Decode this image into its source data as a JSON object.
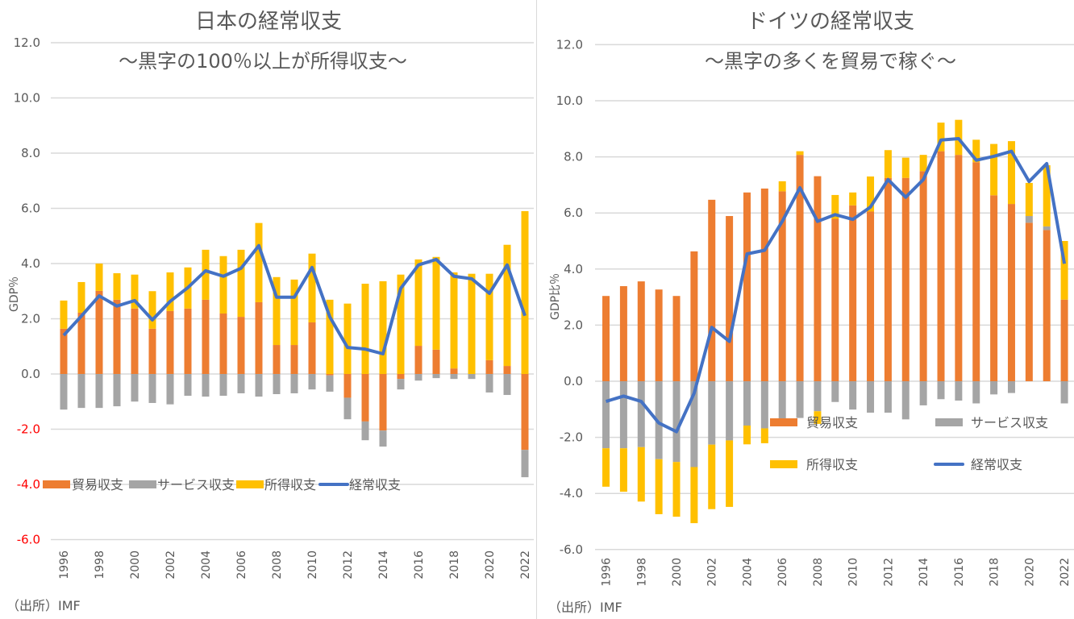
{
  "colors": {
    "trade": "#ED7D31",
    "services": "#A5A5A5",
    "income": "#FFC000",
    "current_account": "#4472C4",
    "gridline": "#d9d9d9",
    "text": "#595959",
    "negative_tick_jp": "#FF0000"
  },
  "chart_data": [
    {
      "type": "bar",
      "stacked": true,
      "title": "日本の経常収支",
      "subtitle": "～黒字の100％以上が所得収支～",
      "ylabel": "GDP％",
      "xlabel": "",
      "ylim": [
        -6,
        12
      ],
      "yticks": [
        "12.0",
        "10.0",
        "8.0",
        "6.0",
        "4.0",
        "2.0",
        "0.0",
        "-2.0",
        "-4.0",
        "-6.0"
      ],
      "negative_ticks_red": true,
      "grid": true,
      "legend": "bottom-left",
      "source": "（出所）IMF",
      "categories": [
        1996,
        1997,
        1998,
        1999,
        2000,
        2001,
        2002,
        2003,
        2004,
        2005,
        2006,
        2007,
        2008,
        2009,
        2010,
        2011,
        2012,
        2013,
        2014,
        2015,
        2016,
        2017,
        2018,
        2019,
        2020,
        2021,
        2022
      ],
      "xtick_labels": [
        "1996",
        "1998",
        "2000",
        "2002",
        "2004",
        "2006",
        "2008",
        "2010",
        "2012",
        "2014",
        "2016",
        "2018",
        "2020",
        "2022"
      ],
      "series": [
        {
          "name": "貿易収支",
          "kind": "bar",
          "values": [
            1.64,
            2.22,
            3.01,
            2.69,
            2.37,
            1.64,
            2.28,
            2.37,
            2.69,
            2.19,
            2.07,
            2.6,
            1.05,
            1.05,
            1.87,
            -0.05,
            -0.86,
            -1.72,
            -2.05,
            -0.18,
            1.02,
            0.88,
            0.2,
            0.0,
            0.5,
            0.29,
            -2.75
          ]
        },
        {
          "name": "サービス収支",
          "kind": "bar",
          "values": [
            -1.29,
            -1.23,
            -1.23,
            -1.17,
            -1.0,
            -1.05,
            -1.1,
            -0.79,
            -0.82,
            -0.79,
            -0.7,
            -0.82,
            -0.73,
            -0.7,
            -0.56,
            -0.59,
            -0.78,
            -0.68,
            -0.58,
            -0.38,
            -0.24,
            -0.15,
            -0.18,
            -0.18,
            -0.67,
            -0.76,
            -0.99
          ]
        },
        {
          "name": "所得収支",
          "kind": "bar",
          "values": [
            1.02,
            1.11,
            0.99,
            0.96,
            1.23,
            1.36,
            1.4,
            1.49,
            1.81,
            2.08,
            2.43,
            2.87,
            2.46,
            2.37,
            2.49,
            2.69,
            2.55,
            3.27,
            3.36,
            3.6,
            3.13,
            3.36,
            3.48,
            3.63,
            3.13,
            4.39,
            5.9
          ]
        },
        {
          "name": "経常収支",
          "kind": "line",
          "values": [
            1.4,
            2.1,
            2.83,
            2.46,
            2.66,
            1.96,
            2.63,
            3.13,
            3.74,
            3.54,
            3.83,
            4.65,
            2.78,
            2.78,
            3.86,
            2.07,
            0.96,
            0.9,
            0.73,
            3.1,
            3.95,
            4.15,
            3.54,
            3.45,
            2.92,
            3.95,
            2.11
          ]
        }
      ]
    },
    {
      "type": "bar",
      "stacked": true,
      "title": "ドイツの経常収支",
      "subtitle": "～黒字の多くを貿易で稼ぐ～",
      "ylabel": "GDP比％",
      "xlabel": "",
      "ylim": [
        -6,
        12
      ],
      "yticks": [
        "12.0",
        "10.0",
        "8.0",
        "6.0",
        "4.0",
        "2.0",
        "0.0",
        "-2.0",
        "-4.0",
        "-6.0"
      ],
      "negative_ticks_red": false,
      "grid": true,
      "legend": "center-right",
      "source": "（出所）IMF",
      "categories": [
        1996,
        1997,
        1998,
        1999,
        2000,
        2001,
        2002,
        2003,
        2004,
        2005,
        2006,
        2007,
        2008,
        2009,
        2010,
        2011,
        2012,
        2013,
        2014,
        2015,
        2016,
        2017,
        2018,
        2019,
        2020,
        2021,
        2022
      ],
      "xtick_labels": [
        "1996",
        "1998",
        "2000",
        "2002",
        "2004",
        "2006",
        "2008",
        "2010",
        "2012",
        "2014",
        "2016",
        "2018",
        "2020",
        "2022"
      ],
      "series": [
        {
          "name": "貿易収支",
          "kind": "bar",
          "values": [
            3.04,
            3.39,
            3.56,
            3.27,
            3.04,
            4.63,
            6.47,
            5.89,
            6.73,
            6.87,
            6.77,
            8.07,
            7.31,
            5.79,
            6.27,
            6.05,
            7.25,
            7.25,
            7.49,
            8.2,
            8.07,
            7.81,
            6.63,
            6.32,
            5.65,
            5.39,
            2.91
          ]
        },
        {
          "name": "サービス収支",
          "kind": "bar",
          "values": [
            -2.39,
            -2.39,
            -2.35,
            -2.78,
            -2.88,
            -3.06,
            -2.26,
            -2.11,
            -1.58,
            -1.68,
            -1.34,
            -1.31,
            -1.07,
            -0.74,
            -1.01,
            -1.12,
            -1.12,
            -1.36,
            -0.86,
            -0.64,
            -0.69,
            -0.79,
            -0.47,
            -0.42,
            0.24,
            0.13,
            -0.79
          ]
        },
        {
          "name": "所得収支",
          "kind": "bar",
          "values": [
            -1.37,
            -1.55,
            -1.94,
            -1.96,
            -1.95,
            -2.0,
            -2.3,
            -2.37,
            -0.67,
            -0.53,
            0.36,
            0.13,
            -0.45,
            0.85,
            0.46,
            1.25,
            0.99,
            0.72,
            0.58,
            1.02,
            1.25,
            0.8,
            1.83,
            2.24,
            1.18,
            2.18,
            2.09
          ]
        },
        {
          "name": "経常収支",
          "kind": "line",
          "values": [
            -0.72,
            -0.53,
            -0.72,
            -1.49,
            -1.8,
            -0.43,
            1.92,
            1.42,
            4.54,
            4.67,
            5.7,
            6.9,
            5.7,
            5.94,
            5.77,
            6.21,
            7.19,
            6.56,
            7.19,
            8.6,
            8.65,
            7.88,
            8.02,
            8.2,
            7.12,
            7.76,
            4.19
          ]
        }
      ]
    }
  ]
}
